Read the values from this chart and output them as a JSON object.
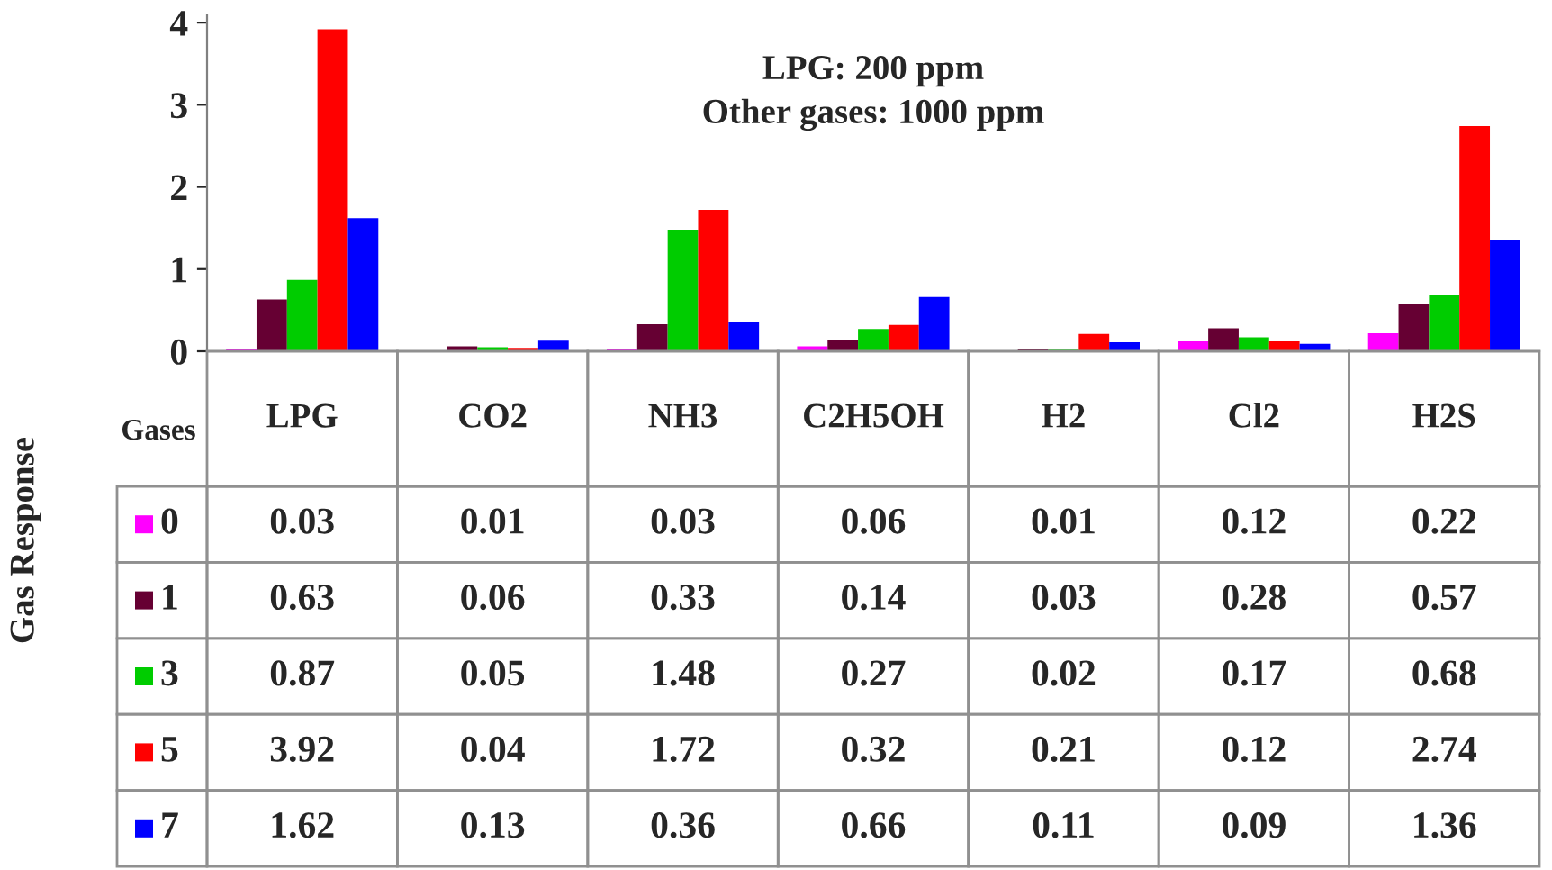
{
  "chart_data": {
    "type": "bar",
    "ylabel": "Gas Response",
    "xlabel": "Gases",
    "annotations": [
      "LPG: 200 ppm\nOther gases: 1000 ppm"
    ],
    "categories": [
      "LPG",
      "CO2",
      "NH3",
      "C2H5OH",
      "H2",
      "Cl2",
      "H2S"
    ],
    "series": [
      {
        "name": "0",
        "color": "#ff00ff",
        "values": [
          0.03,
          0.01,
          0.03,
          0.06,
          0.01,
          0.12,
          0.22
        ]
      },
      {
        "name": "1",
        "color": "#660033",
        "values": [
          0.63,
          0.06,
          0.33,
          0.14,
          0.03,
          0.28,
          0.57
        ]
      },
      {
        "name": "3",
        "color": "#00cc00",
        "values": [
          0.87,
          0.05,
          1.48,
          0.27,
          0.02,
          0.17,
          0.68
        ]
      },
      {
        "name": "5",
        "color": "#ff0000",
        "values": [
          3.92,
          0.04,
          1.72,
          0.32,
          0.21,
          0.12,
          2.74
        ]
      },
      {
        "name": "7",
        "color": "#0000ff",
        "values": [
          1.62,
          0.13,
          0.36,
          0.66,
          0.11,
          0.09,
          1.36
        ]
      }
    ],
    "ylim": [
      0,
      4.1
    ],
    "yticks": [
      0,
      1,
      2,
      3,
      4
    ],
    "data_labels": true,
    "grid": false,
    "legend": "bottom left"
  }
}
